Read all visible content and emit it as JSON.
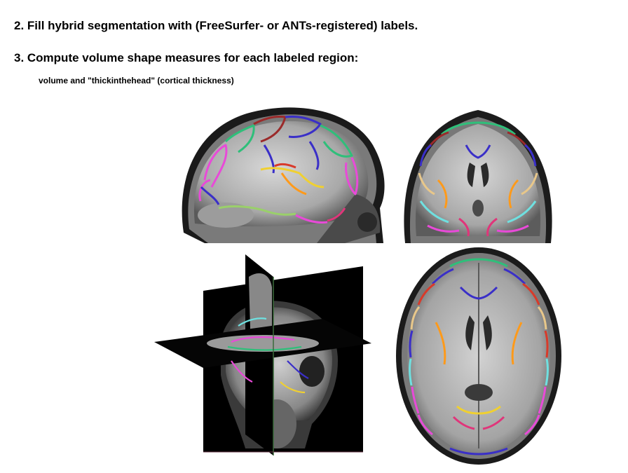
{
  "steps": [
    {
      "text": "2. Fill hybrid segmentation with (FreeSurfer- or ANTs-registered) labels."
    },
    {
      "text": "3. Compute volume shape measures for each labeled region:"
    }
  ],
  "subnote": "volume and \"thickinthehead\" (cortical thickness)",
  "figure": {
    "panels": [
      {
        "view": "sagittal-mri-slice-with-labels"
      },
      {
        "view": "coronal-mri-slice-with-labels"
      },
      {
        "view": "3d-orthogonal-planes"
      },
      {
        "view": "axial-mri-slice-with-labels"
      }
    ],
    "label_colors": [
      "#e84ad8",
      "#3a2fc8",
      "#2fbf7a",
      "#ff9a1a",
      "#d83a2a",
      "#6fe0e0",
      "#e8c78a",
      "#9b2a2a",
      "#f0d030",
      "#9ad06a",
      "#e0357a",
      "#8a5a3a"
    ]
  }
}
